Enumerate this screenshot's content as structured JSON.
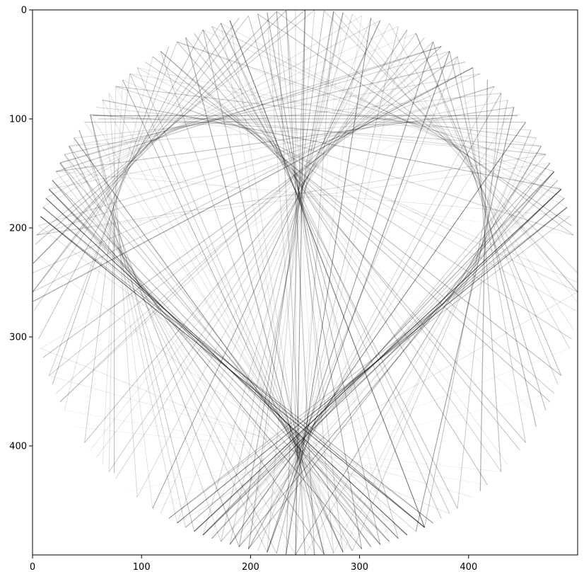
{
  "image_view": {
    "x_ticks": [
      "0",
      "100",
      "200",
      "300",
      "400"
    ],
    "y_ticks": [
      "0",
      "100",
      "200",
      "300",
      "400"
    ],
    "xlim": [
      0,
      500
    ],
    "ylim": [
      500,
      0
    ],
    "image_size": [
      500,
      500
    ],
    "colormap": "gray",
    "subject": "heart-shaped string art inside a circle of nails",
    "nail_count": 180,
    "line_color": "#000000",
    "background_color": "#ffffff"
  }
}
